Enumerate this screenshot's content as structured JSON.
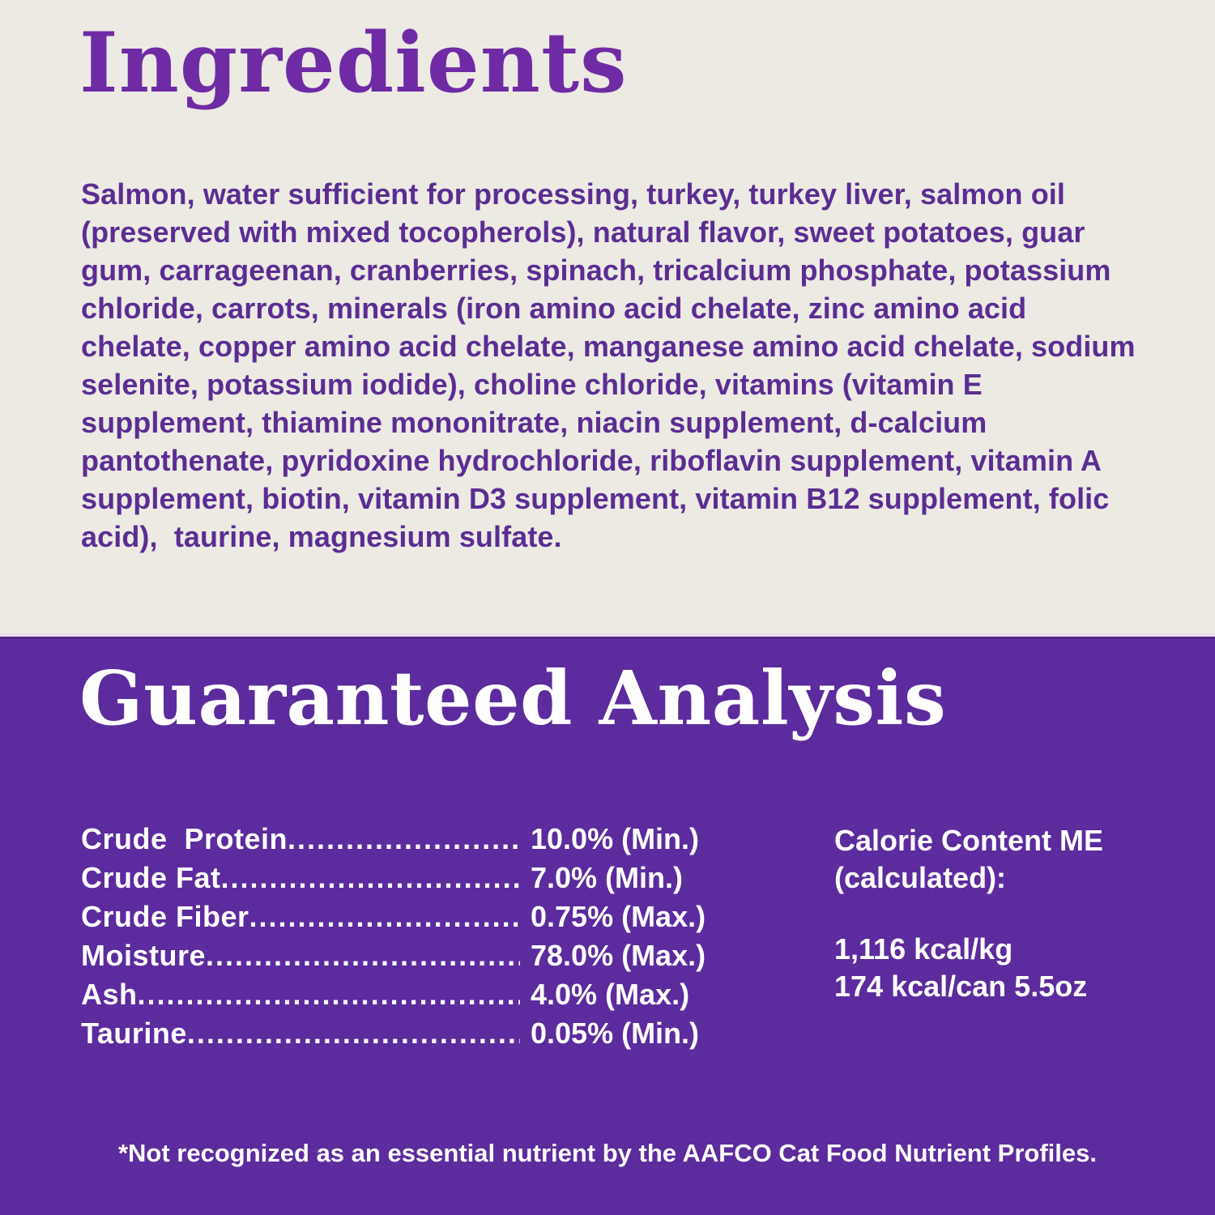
{
  "colors": {
    "background_cream": "#ECEAE3",
    "heading_purple": "#6F2BA4",
    "body_text_purple": "#5B2D92",
    "section_purple": "#5C2B9D",
    "text_white": "#FFFFFF"
  },
  "ingredients": {
    "title": "Ingredients",
    "body": "Salmon, water sufficient for processing, turkey, turkey liver, salmon oil (preserved with mixed tocopherols), natural flavor, sweet potatoes, guar gum, carrageenan, cranberries, spinach, tricalcium phosphate, potassium chloride, carrots, minerals (iron amino acid chelate, zinc amino acid chelate, copper amino acid chelate, manganese amino acid chelate, sodium selenite, potassium iodide), choline chloride, vitamins (vitamin E supplement, thiamine mononitrate, niacin supplement, d-calcium pantothenate, pyridoxine hydrochloride, riboflavin supplement, vitamin A supplement, biotin, vitamin D3 supplement, vitamin B12 supplement, folic acid),  taurine, magnesium sulfate."
  },
  "guaranteed_analysis": {
    "title": "Guaranteed Analysis",
    "leader": "............................................................",
    "rows": [
      {
        "label": "Crude  Protein",
        "value": "10.0% (Min.)"
      },
      {
        "label": "Crude Fat",
        "value": "7.0% (Min.)"
      },
      {
        "label": "Crude Fiber",
        "value": "0.75% (Max.)"
      },
      {
        "label": "Moisture",
        "value": "78.0% (Max.)"
      },
      {
        "label": "Ash",
        "value": "4.0% (Max.)"
      },
      {
        "label": "Taurine",
        "value": "0.05% (Min.)"
      }
    ],
    "calorie": {
      "heading_line1": "Calorie Content ME",
      "heading_line2": "(calculated):",
      "value_line1": "1,116 kcal/kg",
      "value_line2": "174 kcal/can 5.5oz"
    },
    "footnote": "*Not recognized as an essential nutrient by the AAFCO Cat Food Nutrient Profiles."
  }
}
